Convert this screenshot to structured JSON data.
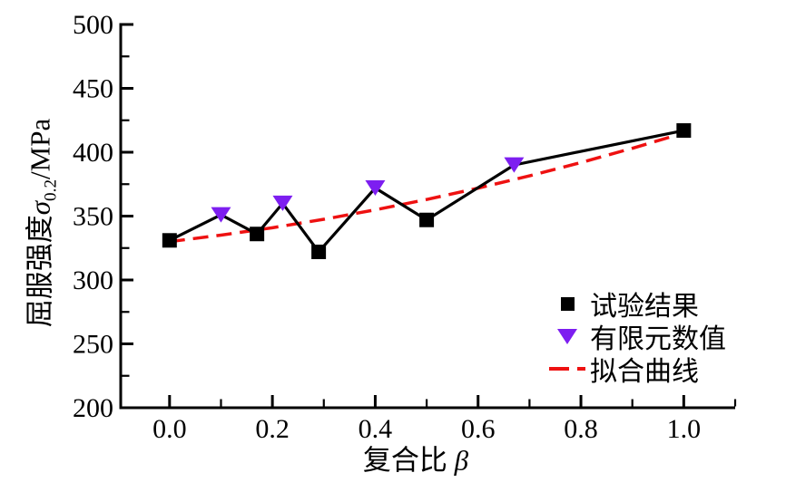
{
  "chart_data": {
    "type": "line",
    "title": "",
    "xlabel": "复合比 β",
    "ylabel": "屈服强度 σ0.2/MPa",
    "xlim": [
      -0.095,
      1.1
    ],
    "ylim": [
      200,
      500
    ],
    "x_tick_values": [
      0.0,
      0.2,
      0.4,
      0.6,
      0.8,
      1.0
    ],
    "x_tick_labels": [
      "0.0",
      "0.2",
      "0.4",
      "0.6",
      "0.8",
      "1.0"
    ],
    "x_minor_tick_values": [
      0.1,
      0.3,
      0.5,
      0.7,
      0.9,
      1.1
    ],
    "y_tick_values": [
      200,
      250,
      300,
      350,
      400,
      450,
      500
    ],
    "y_tick_labels": [
      "200",
      "250",
      "300",
      "350",
      "400",
      "450",
      "500"
    ],
    "y_minor_tick_values": [
      225,
      275,
      325,
      375,
      425,
      475
    ],
    "grid": false,
    "legend_position": "inside-lower-right",
    "series": [
      {
        "name": "试验结果",
        "marker": "square",
        "color": "#000000",
        "points": [
          [
            0.0,
            331
          ],
          [
            0.17,
            336
          ],
          [
            0.29,
            322
          ],
          [
            0.5,
            347
          ],
          [
            1.0,
            417
          ]
        ]
      },
      {
        "name": "有限元数值",
        "marker": "triangle-down",
        "color": "#7D1EF0",
        "points": [
          [
            0.1,
            351
          ],
          [
            0.22,
            360
          ],
          [
            0.4,
            372
          ],
          [
            0.67,
            390
          ]
        ]
      },
      {
        "name": "拟合曲线",
        "marker": "none",
        "line_style": "dashed",
        "color": "#EE1111",
        "points": [
          [
            0.0,
            330
          ],
          [
            0.1,
            335.1
          ],
          [
            0.2,
            340.9
          ],
          [
            0.3,
            347.5
          ],
          [
            0.4,
            354.9
          ],
          [
            0.5,
            363.0
          ],
          [
            0.6,
            371.9
          ],
          [
            0.7,
            381.5
          ],
          [
            0.8,
            391.9
          ],
          [
            0.9,
            403.1
          ],
          [
            1.0,
            415.0
          ]
        ]
      }
    ],
    "note_solid_line": "one solid black line connects experiment and FEM points in ascending x order"
  },
  "labels": {
    "ylabel_parts": {
      "prefix": "屈服强度",
      "symbol": "σ",
      "subscript": "0.2",
      "suffix": "/MPa"
    },
    "xlabel_parts": {
      "prefix": "复合比",
      "symbol": "β"
    }
  },
  "colors": {
    "axis": "#000000",
    "solid_line": "#000000",
    "experiment_marker": "#000000",
    "fem_marker": "#7D1EF0",
    "fit_line": "#EE1111",
    "background": "#ffffff"
  }
}
